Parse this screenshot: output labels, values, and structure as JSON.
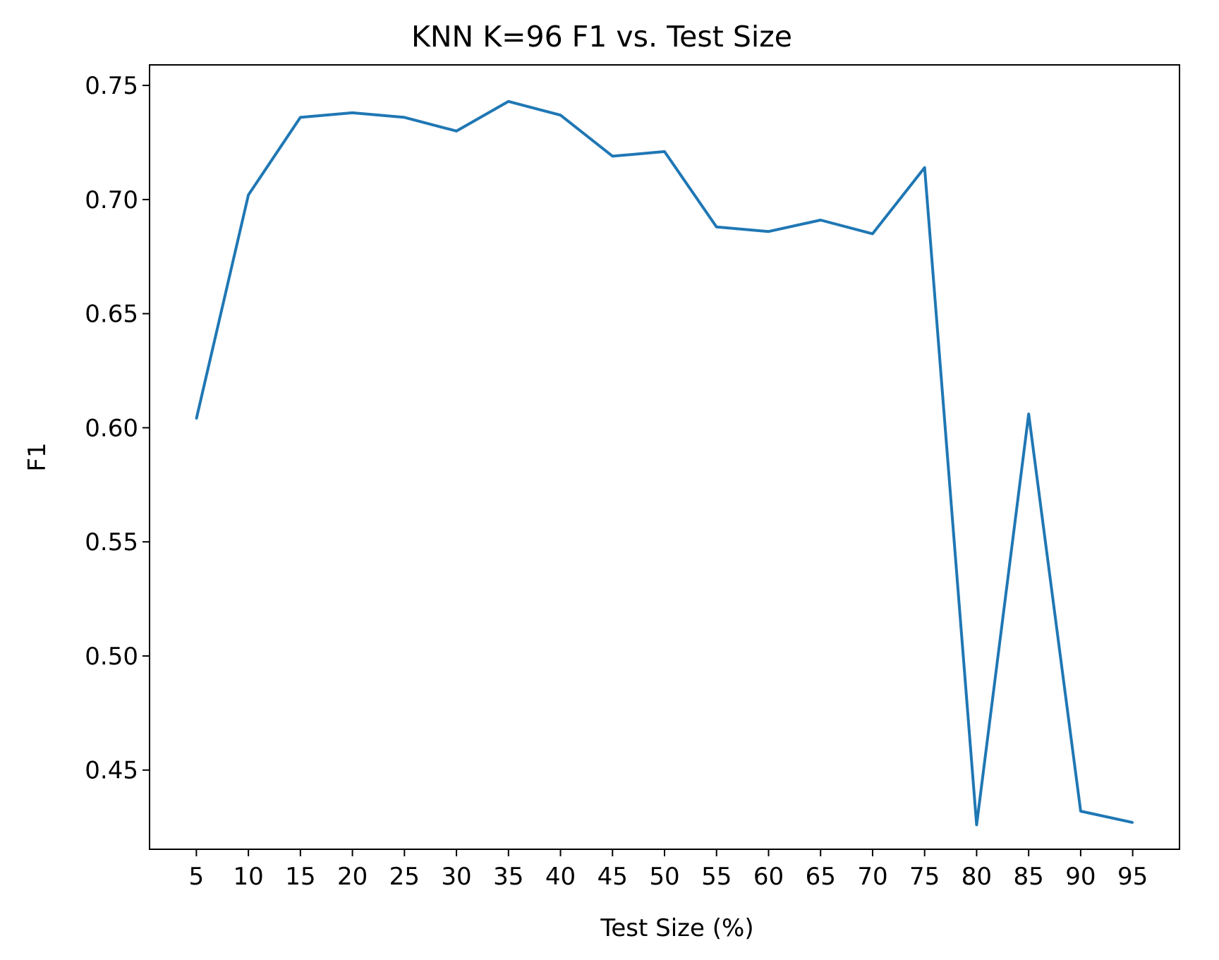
{
  "chart_data": {
    "type": "line",
    "title": "KNN K=96  F1 vs. Test Size",
    "xlabel": "Test Size (%)",
    "ylabel": "F1",
    "x": [
      5,
      10,
      15,
      20,
      25,
      30,
      35,
      40,
      45,
      50,
      55,
      60,
      65,
      70,
      75,
      80,
      85,
      90,
      95
    ],
    "series": [
      {
        "values": [
          0.604,
          0.702,
          0.736,
          0.738,
          0.736,
          0.73,
          0.743,
          0.737,
          0.719,
          0.721,
          0.688,
          0.686,
          0.691,
          0.685,
          0.714,
          0.426,
          0.606,
          0.432,
          0.427
        ],
        "color": "#1f77b4"
      }
    ],
    "xticks": [
      "5",
      "10",
      "15",
      "20",
      "25",
      "30",
      "35",
      "40",
      "45",
      "50",
      "55",
      "60",
      "65",
      "70",
      "75",
      "80",
      "85",
      "90",
      "95"
    ],
    "yticks": [
      "0.45",
      "0.50",
      "0.55",
      "0.60",
      "0.65",
      "0.70",
      "0.75"
    ],
    "xlim": [
      0.5,
      99.5
    ],
    "ylim": [
      0.4153,
      0.759
    ],
    "grid": false,
    "legend": false
  }
}
